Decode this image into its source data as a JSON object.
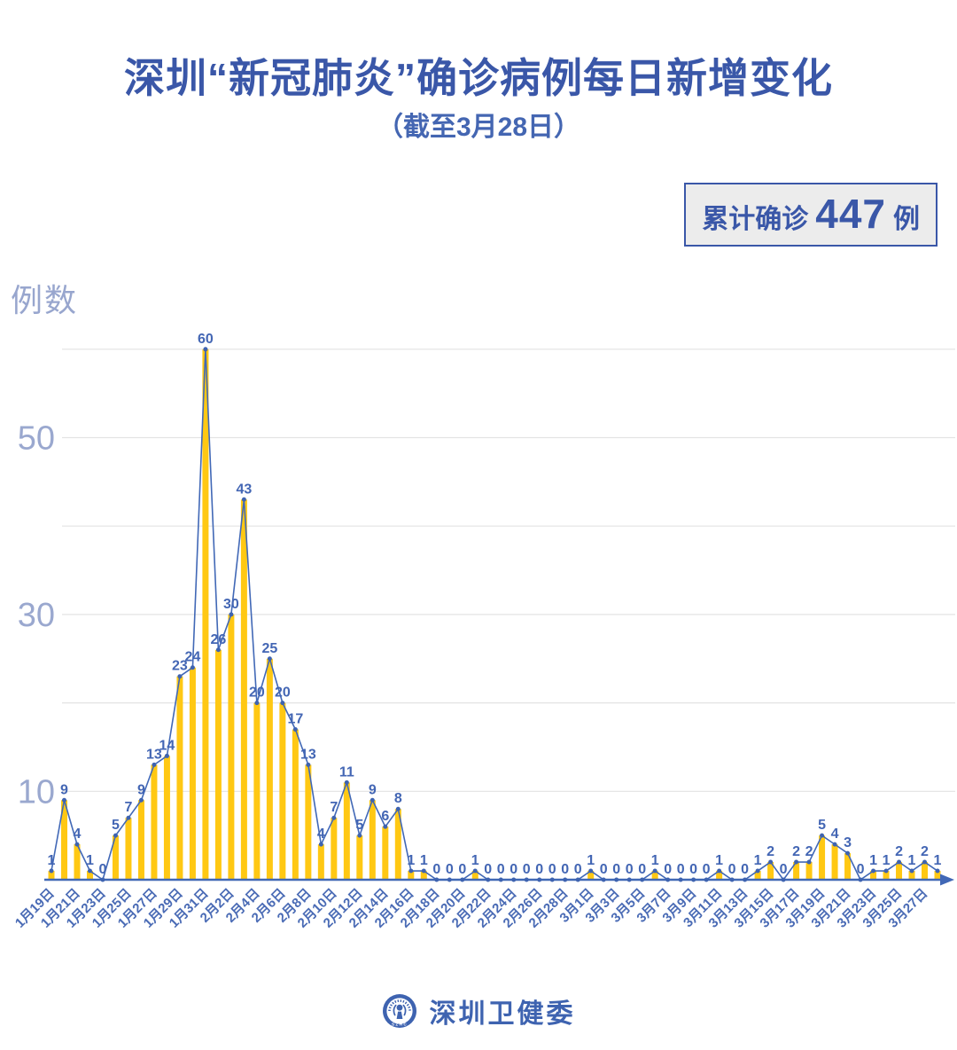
{
  "title": "深圳“新冠肺炎”确诊病例每日新增变化",
  "subtitle": "（截至3月28日）",
  "badge": {
    "prefix": "累计确诊",
    "value": "447",
    "suffix": "例"
  },
  "footer": {
    "org": "深圳卫健委",
    "logo_icon": "szhc-emblem-icon"
  },
  "chart_data": {
    "type": "bar",
    "title": "深圳“新冠肺炎”确诊病例每日新增变化",
    "subtitle": "（截至3月28日）",
    "ylabel": "例数",
    "xlabel": "",
    "ylim": [
      0,
      62
    ],
    "grid": true,
    "gridline_values": [
      10,
      20,
      30,
      40,
      50,
      60
    ],
    "y_ticks_labeled": [
      50,
      30,
      10
    ],
    "x_tick_every": 2,
    "categories": [
      "1月19日",
      "1月20日",
      "1月21日",
      "1月22日",
      "1月23日",
      "1月24日",
      "1月25日",
      "1月26日",
      "1月27日",
      "1月28日",
      "1月29日",
      "1月30日",
      "1月31日",
      "2月1日",
      "2月2日",
      "2月3日",
      "2月4日",
      "2月5日",
      "2月6日",
      "2月7日",
      "2月8日",
      "2月9日",
      "2月10日",
      "2月11日",
      "2月12日",
      "2月13日",
      "2月14日",
      "2月15日",
      "2月16日",
      "2月17日",
      "2月18日",
      "2月19日",
      "2月20日",
      "2月21日",
      "2月22日",
      "2月23日",
      "2月24日",
      "2月25日",
      "2月26日",
      "2月27日",
      "2月28日",
      "2月29日",
      "3月1日",
      "3月2日",
      "3月3日",
      "3月4日",
      "3月5日",
      "3月6日",
      "3月7日",
      "3月8日",
      "3月9日",
      "3月10日",
      "3月11日",
      "3月12日",
      "3月13日",
      "3月14日",
      "3月15日",
      "3月16日",
      "3月17日",
      "3月18日",
      "3月19日",
      "3月20日",
      "3月21日",
      "3月22日",
      "3月23日",
      "3月24日",
      "3月25日",
      "3月26日",
      "3月27日",
      "3月28日"
    ],
    "values": [
      1,
      9,
      4,
      1,
      0,
      5,
      7,
      9,
      13,
      14,
      23,
      24,
      60,
      26,
      30,
      43,
      20,
      25,
      20,
      17,
      13,
      4,
      7,
      11,
      5,
      9,
      6,
      8,
      1,
      1,
      0,
      0,
      0,
      1,
      0,
      0,
      0,
      0,
      0,
      0,
      0,
      0,
      1,
      0,
      0,
      0,
      0,
      1,
      0,
      0,
      0,
      0,
      1,
      0,
      0,
      1,
      2,
      0,
      2,
      2,
      5,
      4,
      3,
      0,
      1,
      1,
      2,
      1,
      2,
      1
    ],
    "cumulative_total": 447,
    "colors": {
      "bar": "#FFC813",
      "line": "#4168B6",
      "marker": "#3E63B0",
      "value_label": "#4366B4",
      "date_label": "#4A6BB5",
      "grid": "#E3E3E3",
      "axis": "#4168B6",
      "y_tick": "#9AA8CF",
      "title": "#3A57A8",
      "badge_bg": "#ECECEC"
    }
  }
}
